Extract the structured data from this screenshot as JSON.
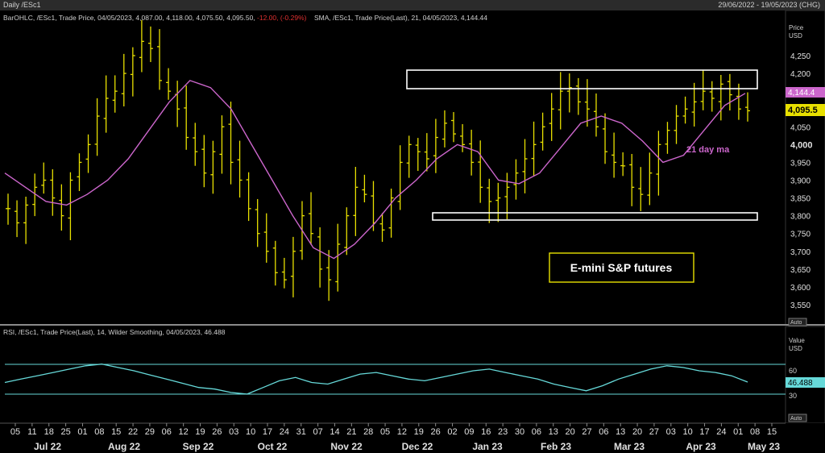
{
  "header": {
    "left": "Daily /ESc1",
    "right": "29/06/2022 - 19/05/2023 (CHG)"
  },
  "price_panel": {
    "legend_ohlc": "BarOHLC, /ESc1, Trade Price, 04/05/2023, 4,087.00, 4,118.00, 4,075.50, 4,095.50,",
    "legend_chg": " -12.00, (-0.29%)",
    "legend_sma": "SMA, /ESc1, Trade Price(Last),  21, 04/05/2023, 4,144.44",
    "axis_title": [
      "Price",
      "USD"
    ],
    "auto_label": "Auto",
    "last_price_label": "4,095.5",
    "sma_label": "4,144.4",
    "ma_annotation": "21 day ma",
    "title_box": "E-mini S&P futures"
  },
  "rsi_panel": {
    "legend": "RSI, /ESc1, Trade Price(Last),  14, Wilder Smoothing, 04/05/2023, 46.488",
    "axis_title": [
      "Value",
      "USD"
    ],
    "auto_label": "Auto",
    "value_label": "46.488"
  },
  "x_axis": {
    "day_ticks": [
      "05",
      "11",
      "18",
      "25",
      "01",
      "08",
      "15",
      "22",
      "29",
      "06",
      "12",
      "19",
      "26",
      "03",
      "10",
      "17",
      "24",
      "31",
      "07",
      "14",
      "21",
      "28",
      "05",
      "12",
      "19",
      "26",
      "02",
      "09",
      "16",
      "23",
      "30",
      "06",
      "13",
      "20",
      "27",
      "06",
      "13",
      "20",
      "27",
      "03",
      "10",
      "17",
      "24",
      "01",
      "08",
      "15"
    ],
    "months": [
      "Jul 22",
      "Aug 22",
      "Sep 22",
      "Oct 22",
      "Nov 22",
      "Dec 22",
      "Jan 23",
      "Feb 23",
      "Mar 23",
      "Apr 23",
      "May 23"
    ]
  },
  "colors": {
    "bars": "#e8e000",
    "sma": "#cc66cc",
    "rsi": "#66d9d9",
    "box": "#ffffff",
    "annotation": "#cc66cc"
  },
  "chart_data": [
    {
      "type": "line",
      "series": [
        {
          "name": "OHLC",
          "values": [
            3820,
            3780,
            3830,
            3880,
            3900,
            3850,
            3800,
            3900,
            3950,
            4000,
            4080,
            4130,
            4150,
            4200,
            4250,
            4290,
            4270,
            4180,
            4150,
            4100,
            4020,
            3980,
            3920,
            3980,
            4050,
            3950,
            3900,
            3820,
            3750,
            3700,
            3640,
            3620,
            3700,
            3800,
            3750,
            3650,
            3620,
            3720,
            3800,
            3880,
            3860,
            3780,
            3760,
            3850,
            3950,
            4000,
            3980,
            3960,
            4020,
            4060,
            4030,
            4000,
            3950,
            3880,
            3840,
            3850,
            3880,
            3920,
            3960,
            4000,
            4050,
            4100,
            4150,
            4160,
            4120,
            4100,
            4050,
            3980,
            3950,
            3940,
            3880,
            3860,
            3920,
            4000,
            4040,
            4080,
            4100,
            4120,
            4150,
            4130,
            4170,
            4140,
            4100,
            4095
          ]
        },
        {
          "name": "21 day ma",
          "values": [
            3920,
            3880,
            3840,
            3830,
            3860,
            3900,
            3960,
            4040,
            4120,
            4180,
            4160,
            4100,
            4000,
            3900,
            3800,
            3710,
            3680,
            3720,
            3780,
            3850,
            3900,
            3960,
            4000,
            3980,
            3900,
            3890,
            3920,
            3990,
            4060,
            4080,
            4060,
            4010,
            3950,
            3970,
            4040,
            4110,
            4144
          ]
        },
        {
          "name": "RSI",
          "values": [
            46,
            50,
            54,
            58,
            62,
            66,
            68,
            64,
            60,
            55,
            50,
            45,
            40,
            38,
            34,
            32,
            40,
            48,
            52,
            46,
            44,
            50,
            56,
            58,
            54,
            50,
            48,
            52,
            56,
            60,
            62,
            58,
            54,
            50,
            44,
            40,
            36,
            42,
            50,
            56,
            62,
            66,
            64,
            60,
            58,
            54,
            46.488
          ]
        }
      ]
    }
  ]
}
